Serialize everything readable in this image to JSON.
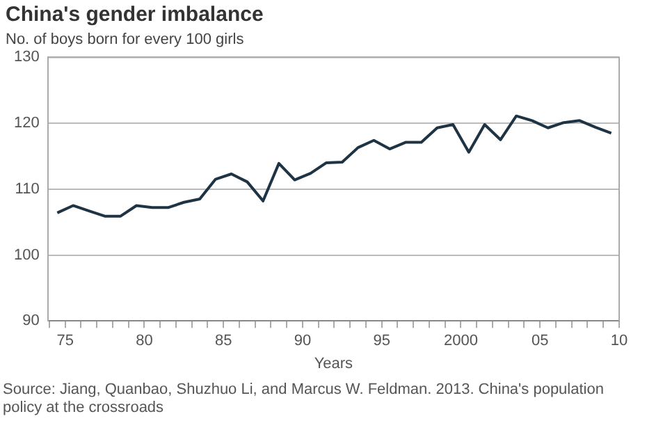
{
  "chart_data": {
    "type": "line",
    "title": "China's gender imbalance",
    "subtitle": "No. of boys born for every 100 girls",
    "xlabel": "Years",
    "annotations": [
      "Source: Jiang, Quanbao, Shuzhuo Li, and Marcus W. Feldman. 2013. China's population policy at the crossroads"
    ],
    "x": [
      1974.5,
      1975.5,
      1976.5,
      1977.5,
      1978.5,
      1979.5,
      1980.5,
      1981.5,
      1982.5,
      1983.5,
      1984.5,
      1985.5,
      1986.5,
      1987.5,
      1988.5,
      1989.5,
      1990.5,
      1991.5,
      1992.5,
      1993.5,
      1994.5,
      1995.5,
      1996.5,
      1997.5,
      1998.5,
      1999.5,
      2000.5,
      2001.5,
      2002.5,
      2003.5,
      2004.5,
      2005.5,
      2006.5,
      2007.5,
      2008.5,
      2009.5
    ],
    "series": [
      {
        "color": "#1e3444",
        "values": [
          106.4,
          107.5,
          106.7,
          105.9,
          105.9,
          107.5,
          107.2,
          107.2,
          108.0,
          108.5,
          111.5,
          112.3,
          111.1,
          108.2,
          113.9,
          111.4,
          112.4,
          114.0,
          114.1,
          116.3,
          117.4,
          116.1,
          117.1,
          117.1,
          119.3,
          119.8,
          115.6,
          119.8,
          117.5,
          121.1,
          120.4,
          119.3,
          120.1,
          120.4,
          119.4,
          118.5
        ]
      }
    ],
    "xlim": [
      1973.9,
      2010
    ],
    "xticks": [
      {
        "value": 1974,
        "label": null
      },
      {
        "value": 1975,
        "label": "75"
      },
      {
        "value": 1976,
        "label": null
      },
      {
        "value": 1977,
        "label": null
      },
      {
        "value": 1978,
        "label": null
      },
      {
        "value": 1979,
        "label": null
      },
      {
        "value": 1980,
        "label": "80"
      },
      {
        "value": 1981,
        "label": null
      },
      {
        "value": 1982,
        "label": null
      },
      {
        "value": 1983,
        "label": null
      },
      {
        "value": 1984,
        "label": null
      },
      {
        "value": 1985,
        "label": "85"
      },
      {
        "value": 1986,
        "label": null
      },
      {
        "value": 1987,
        "label": null
      },
      {
        "value": 1988,
        "label": null
      },
      {
        "value": 1989,
        "label": null
      },
      {
        "value": 1990,
        "label": "90"
      },
      {
        "value": 1991,
        "label": null
      },
      {
        "value": 1992,
        "label": null
      },
      {
        "value": 1993,
        "label": null
      },
      {
        "value": 1994,
        "label": null
      },
      {
        "value": 1995,
        "label": "95"
      },
      {
        "value": 1996,
        "label": null
      },
      {
        "value": 1997,
        "label": null
      },
      {
        "value": 1998,
        "label": null
      },
      {
        "value": 1999,
        "label": null
      },
      {
        "value": 2000,
        "label": "2000"
      },
      {
        "value": 2001,
        "label": null
      },
      {
        "value": 2002,
        "label": null
      },
      {
        "value": 2003,
        "label": null
      },
      {
        "value": 2004,
        "label": null
      },
      {
        "value": 2005,
        "label": "05"
      },
      {
        "value": 2006,
        "label": null
      },
      {
        "value": 2007,
        "label": null
      },
      {
        "value": 2008,
        "label": null
      },
      {
        "value": 2009,
        "label": null
      },
      {
        "value": 2010,
        "label": "10"
      }
    ],
    "ylim": [
      90,
      130
    ],
    "yticks": [
      90,
      100,
      110,
      120,
      130
    ],
    "grid": "y",
    "legend": false,
    "marker": "none",
    "line_style": "solid"
  }
}
